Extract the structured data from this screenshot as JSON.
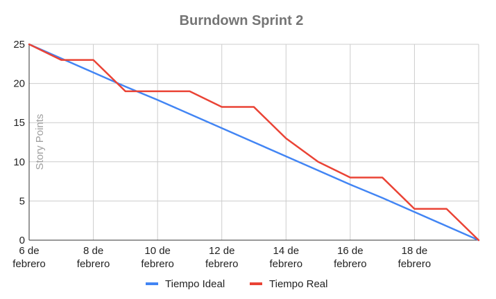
{
  "chart_data": {
    "type": "line",
    "title": "Burndown Sprint 2",
    "xlabel": "",
    "ylabel": "Story Points",
    "x": [
      0,
      1,
      2,
      3,
      4,
      5,
      6,
      7,
      8,
      9,
      10,
      11,
      12,
      13,
      14
    ],
    "x_ticks": [
      {
        "x": 0,
        "line1": "6 de",
        "line2": "febrero"
      },
      {
        "x": 2,
        "line1": "8 de",
        "line2": "febrero"
      },
      {
        "x": 4,
        "line1": "10 de",
        "line2": "febrero"
      },
      {
        "x": 6,
        "line1": "12 de",
        "line2": "febrero"
      },
      {
        "x": 8,
        "line1": "14 de",
        "line2": "febrero"
      },
      {
        "x": 10,
        "line1": "16 de",
        "line2": "febrero"
      },
      {
        "x": 12,
        "line1": "18 de",
        "line2": "febrero"
      }
    ],
    "xlim": [
      0,
      14
    ],
    "ylim": [
      0,
      25
    ],
    "y_ticks": [
      0,
      5,
      10,
      15,
      20,
      25
    ],
    "grid": true,
    "legend_position": "bottom",
    "series": [
      {
        "name": "Tiempo Ideal",
        "color": "#4285f4",
        "values": [
          25,
          23.2,
          21.4,
          19.6,
          17.9,
          16.1,
          14.3,
          12.5,
          10.7,
          8.9,
          7.1,
          5.4,
          3.6,
          1.8,
          0
        ]
      },
      {
        "name": "Tiempo Real",
        "color": "#ea4335",
        "values": [
          25,
          23,
          23,
          19,
          19,
          19,
          17,
          17,
          13,
          10,
          8,
          8,
          4,
          4,
          0
        ]
      }
    ]
  }
}
